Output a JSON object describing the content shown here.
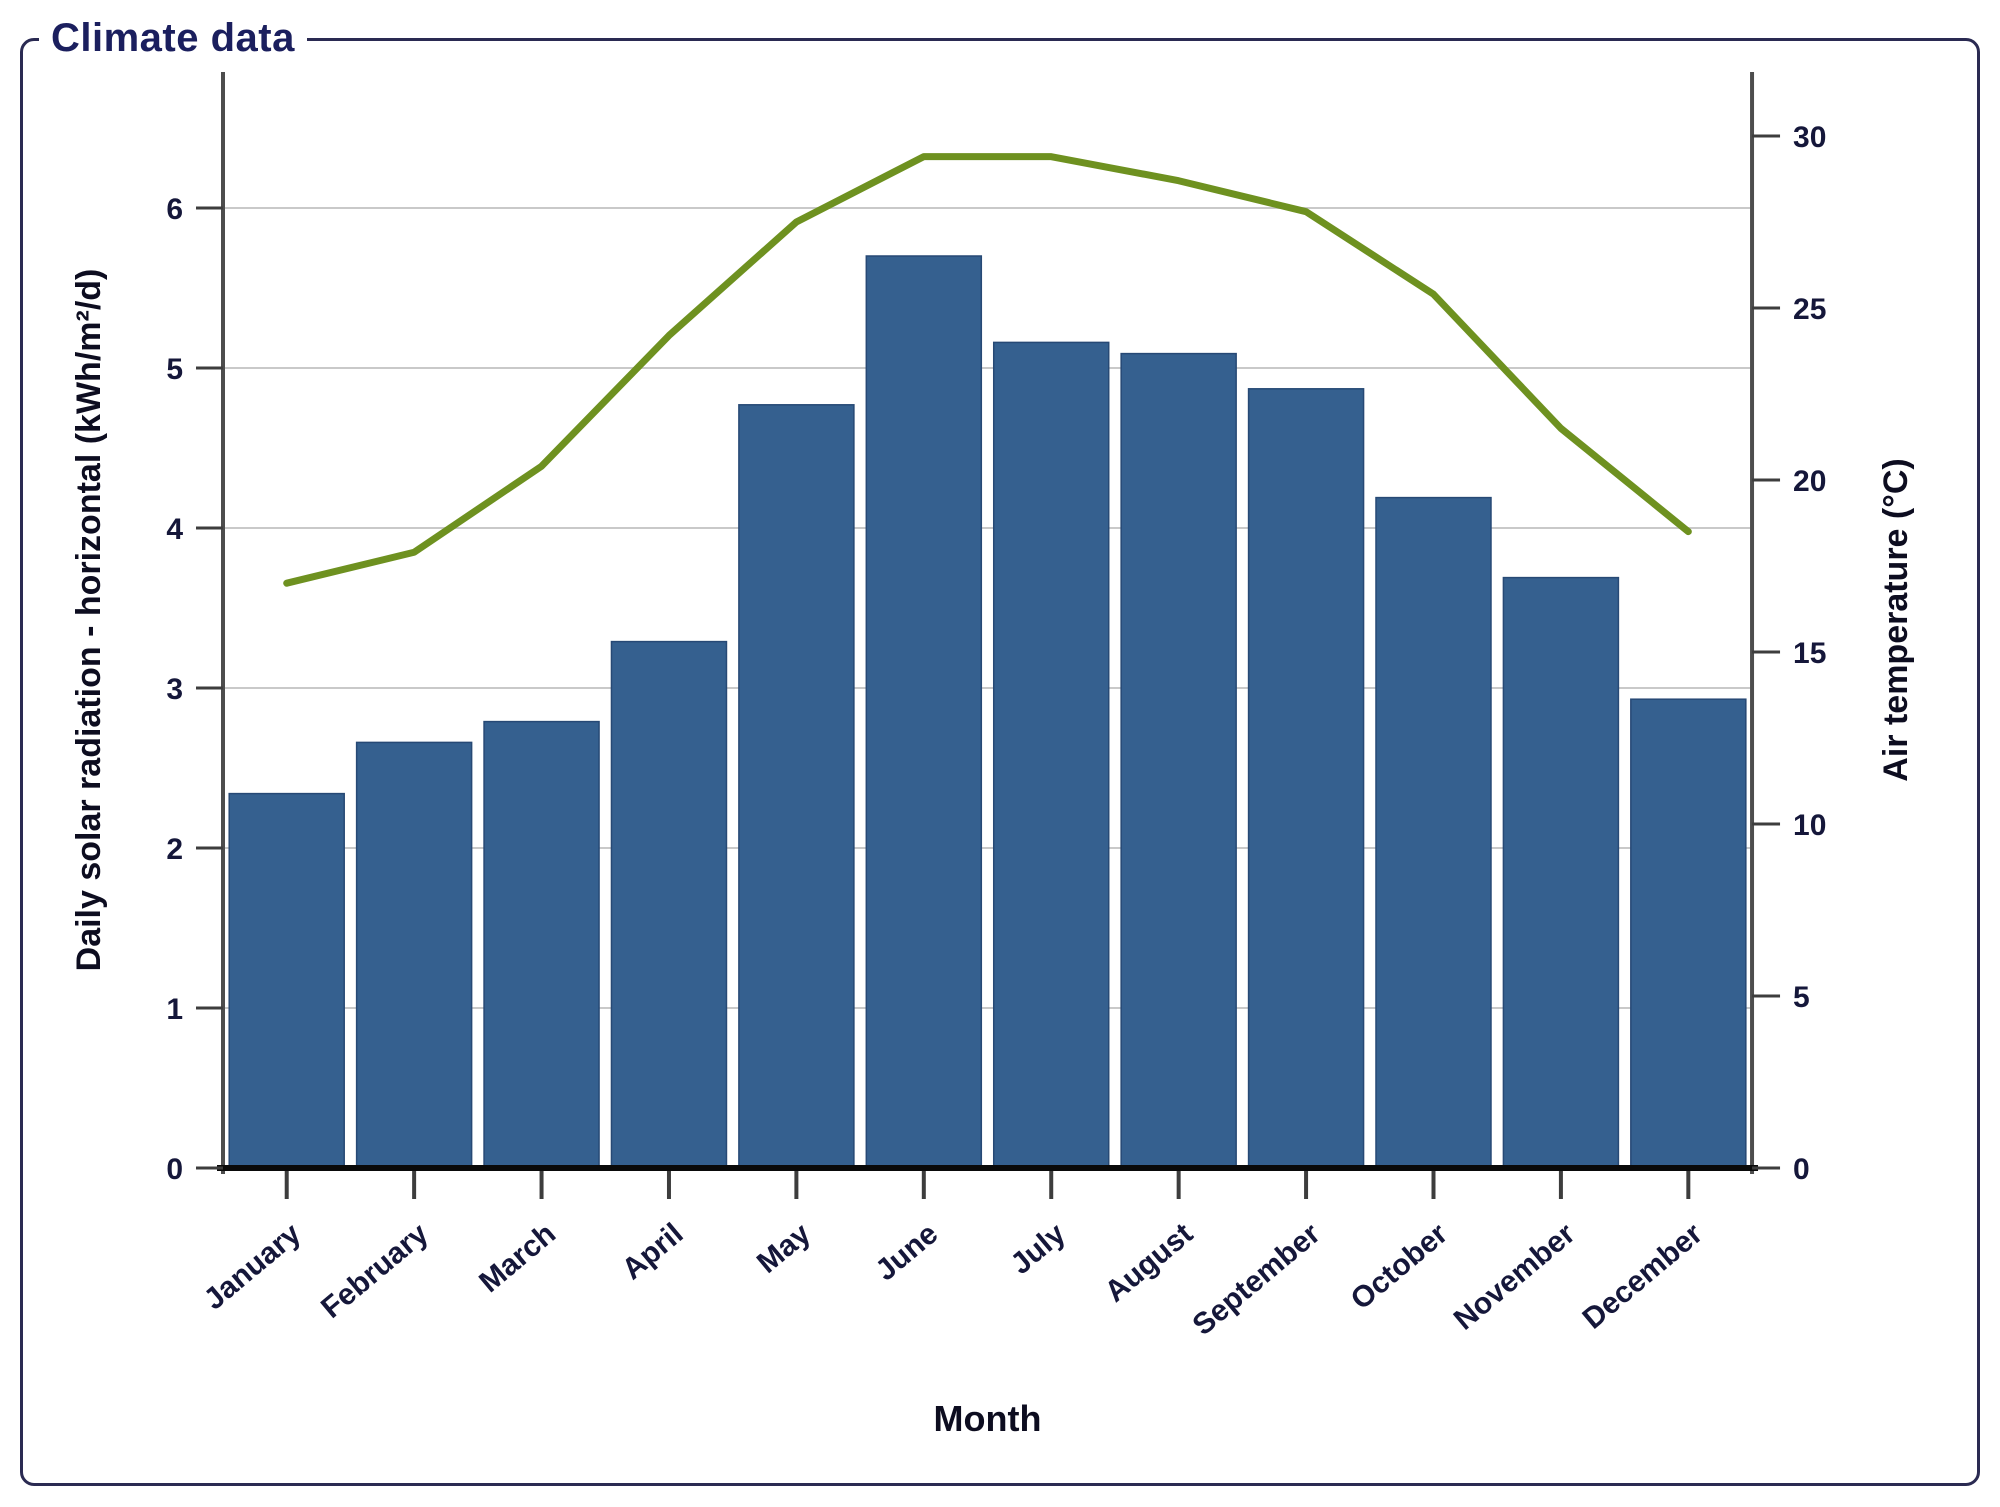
{
  "groupbox": {
    "title": "Climate data"
  },
  "chart_data": {
    "type": "bar",
    "subtype": "bar+line dual axis",
    "title": "Climate data",
    "categories": [
      "January",
      "February",
      "March",
      "April",
      "May",
      "June",
      "July",
      "August",
      "September",
      "October",
      "November",
      "December"
    ],
    "series": [
      {
        "name": "Daily solar radiation - horizontal",
        "type": "bar",
        "axis": "left",
        "unit": "kWh/m²/d",
        "color": "#35608f",
        "edge_color": "#274975",
        "values": [
          2.34,
          2.66,
          2.79,
          3.29,
          4.77,
          5.7,
          5.16,
          5.09,
          4.87,
          4.19,
          3.69,
          2.93
        ]
      },
      {
        "name": "Air temperature",
        "type": "line",
        "axis": "right",
        "unit": "°C",
        "color": "#6e9120",
        "values": [
          17.0,
          17.9,
          20.4,
          24.2,
          27.5,
          29.4,
          29.4,
          28.7,
          27.8,
          25.4,
          21.5,
          18.5
        ]
      }
    ],
    "xlabel": "Month",
    "left_axis": {
      "label": "Daily solar radiation - horizontal (kWh/m²/d)",
      "min": 0,
      "max": 6.85,
      "ticks": [
        0,
        1,
        2,
        3,
        4,
        5,
        6
      ]
    },
    "right_axis": {
      "label": "Air temperature (°C)",
      "min": 0,
      "max": 31.8,
      "ticks": [
        0,
        5,
        10,
        15,
        20,
        25,
        30
      ]
    },
    "grid": "horizontal",
    "legend_position": "none",
    "colors": {
      "gridline": "#c9c9c9",
      "side_axis": "#4d4d4d",
      "bottom_axis": "#0a0a0a",
      "tick": "#3d3d3d",
      "tick_label": "#15173a",
      "axis_title": "#0d0d20",
      "frame": "#2a2a52",
      "title_text": "#1b1f5e"
    }
  }
}
